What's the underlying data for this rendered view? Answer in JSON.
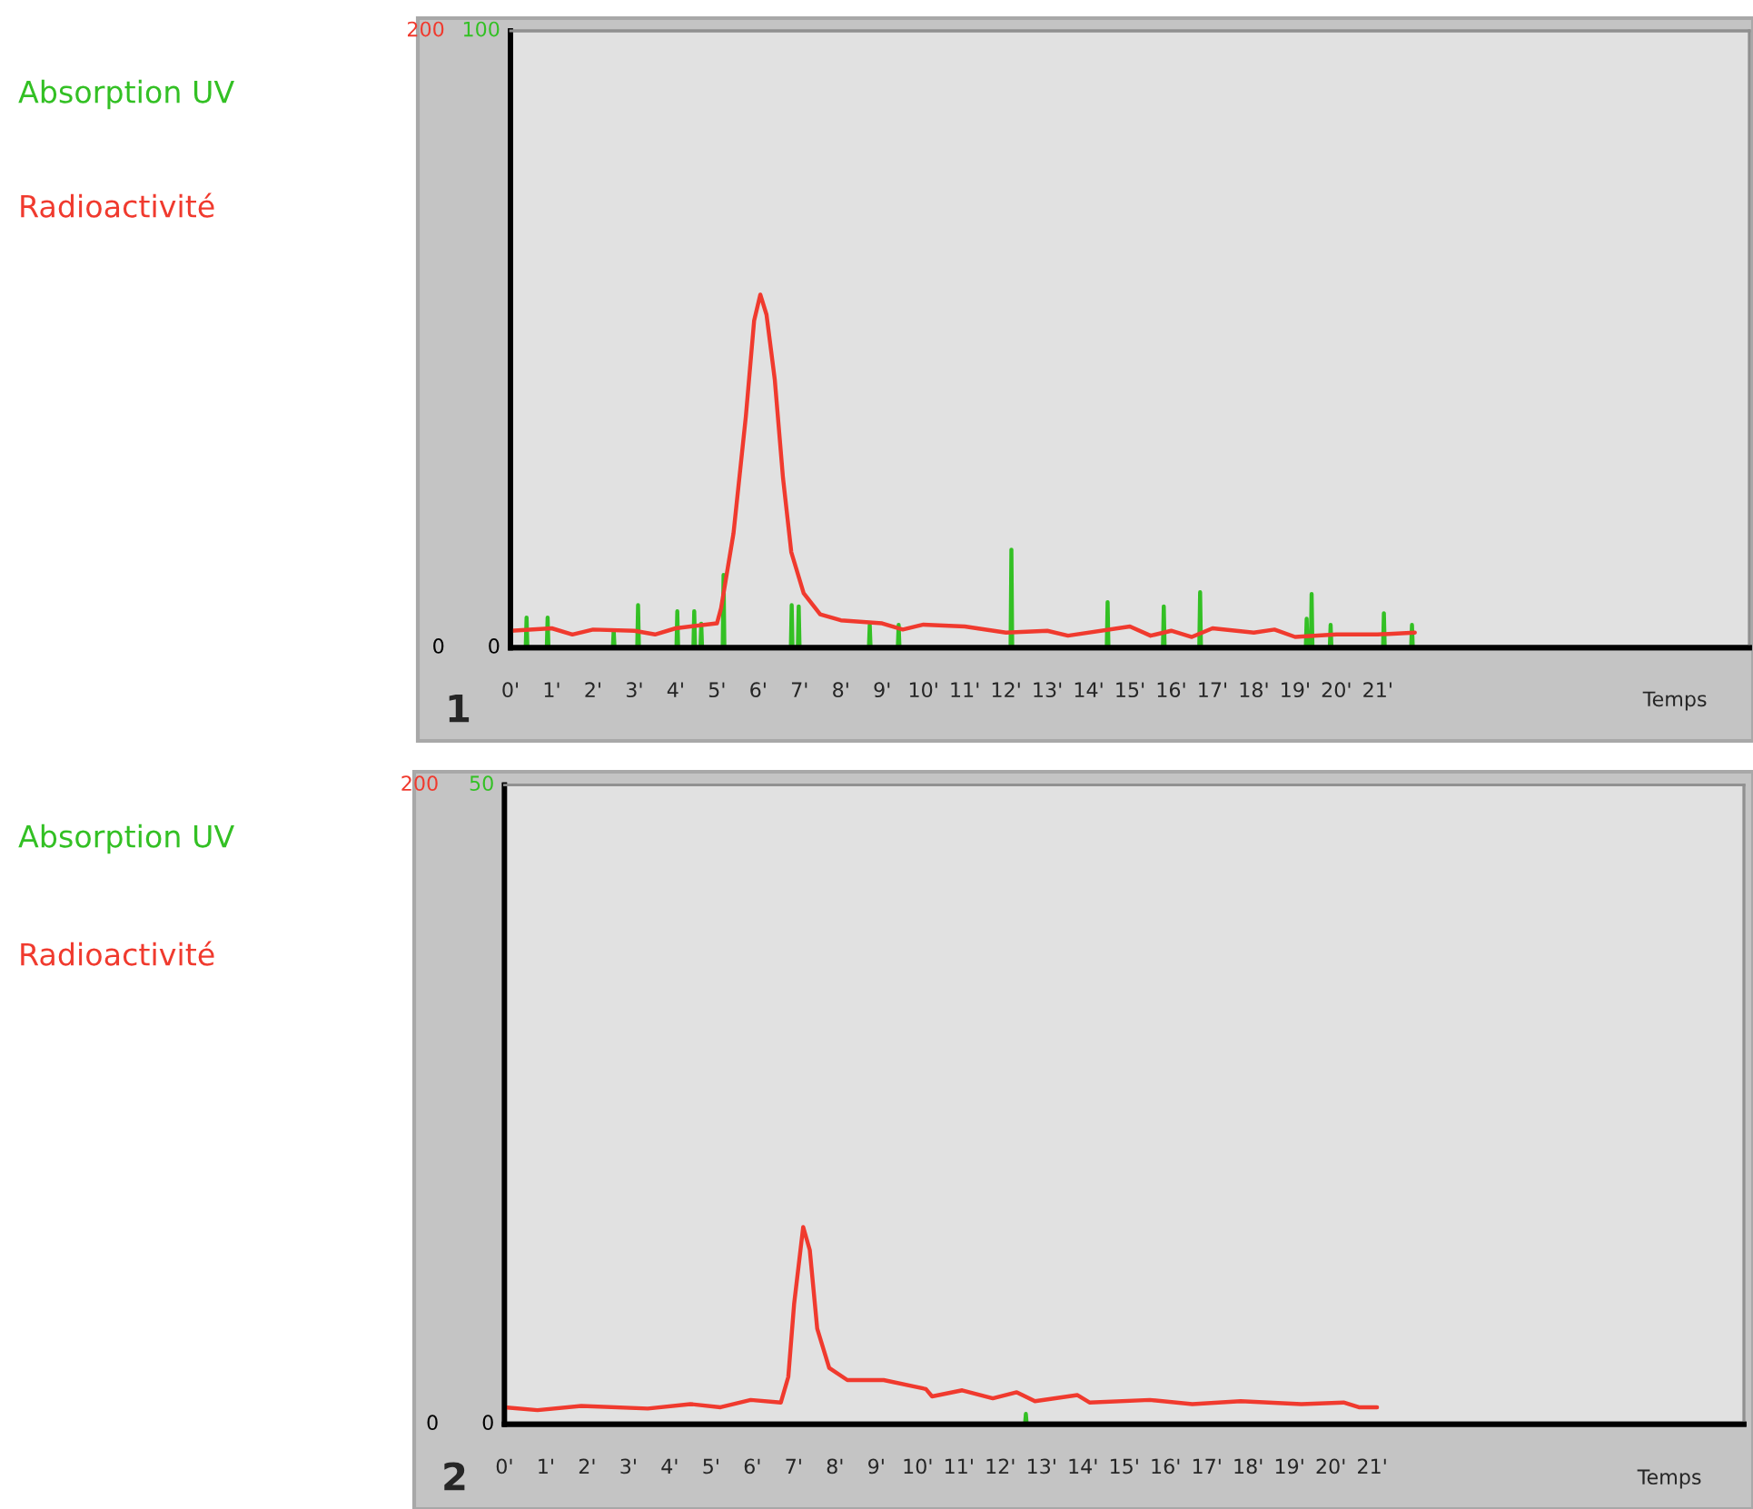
{
  "chart_data": [
    {
      "type": "line",
      "xlabel": "Temps",
      "annotations": [
        "1"
      ],
      "legend": "left",
      "xlim": [
        0,
        30
      ],
      "xticks": [
        {
          "value": 0,
          "label": "0'"
        },
        {
          "value": 1,
          "label": "1'"
        },
        {
          "value": 2,
          "label": "2'"
        },
        {
          "value": 3,
          "label": "3'"
        },
        {
          "value": 4,
          "label": "4'"
        },
        {
          "value": 5,
          "label": "5'"
        },
        {
          "value": 6,
          "label": "6'"
        },
        {
          "value": 7,
          "label": "7'"
        },
        {
          "value": 8,
          "label": "8'"
        },
        {
          "value": 9,
          "label": "9'"
        },
        {
          "value": 10,
          "label": "10'"
        },
        {
          "value": 11,
          "label": "11'"
        },
        {
          "value": 12,
          "label": "12'"
        },
        {
          "value": 13,
          "label": "13'"
        },
        {
          "value": 14,
          "label": "14'"
        },
        {
          "value": 15,
          "label": "15'"
        },
        {
          "value": 16,
          "label": "16'"
        },
        {
          "value": 17,
          "label": "17'"
        },
        {
          "value": 18,
          "label": "18'"
        },
        {
          "value": 19,
          "label": "19'"
        },
        {
          "value": 20,
          "label": "20'"
        },
        {
          "value": 21,
          "label": "21'"
        }
      ],
      "ylim": [
        0,
        100
      ],
      "yticks": [
        0,
        100
      ],
      "y2lim": [
        0,
        200
      ],
      "y2ticks": [
        0,
        200
      ],
      "series": [
        {
          "name": "Absorption UV",
          "color": "#33c024",
          "x": [
            0,
            0.37,
            0.39,
            0.41,
            0.88,
            0.9,
            0.92,
            2.48,
            2.5,
            2.52,
            3.07,
            3.09,
            3.11,
            4.02,
            4.04,
            4.06,
            4.43,
            4.45,
            4.47,
            4.6,
            4.62,
            4.64,
            5.14,
            5.16,
            5.18,
            6.79,
            6.81,
            6.83,
            6.96,
            6.98,
            7.0,
            8.68,
            8.7,
            8.72,
            9.38,
            9.4,
            9.42,
            12.11,
            12.13,
            12.15,
            14.44,
            14.46,
            14.48,
            15.8,
            15.82,
            15.84,
            16.68,
            16.7,
            16.72,
            19.26,
            19.28,
            19.3,
            19.38,
            19.4,
            19.42,
            19.84,
            19.86,
            19.88,
            21.13,
            21.15,
            21.17,
            21.81,
            21.83,
            21.85
          ],
          "values": [
            0,
            0,
            4.9,
            0,
            0,
            4.9,
            0,
            0,
            2.8,
            0,
            0,
            6.9,
            0,
            0,
            5.9,
            0,
            0,
            5.9,
            0,
            0,
            3.9,
            0,
            0,
            11.8,
            0,
            0,
            6.9,
            0,
            0,
            6.7,
            0,
            0,
            3.7,
            0,
            0,
            3.7,
            0,
            0,
            15.9,
            0,
            0,
            7.4,
            0,
            0,
            6.7,
            0,
            0,
            9.0,
            0,
            0,
            4.7,
            0,
            0,
            8.7,
            0,
            0,
            3.7,
            0,
            0,
            5.6,
            0,
            0,
            3.7,
            0
          ]
        },
        {
          "name": "Radioactivité",
          "color": "#f03a2e",
          "axis": "y2",
          "x": [
            0,
            1,
            1.5,
            2,
            3,
            3.5,
            4,
            5,
            5.1,
            5.4,
            5.7,
            5.9,
            6.05,
            6.2,
            6.4,
            6.6,
            6.8,
            7.1,
            7.5,
            8,
            9,
            9.5,
            10,
            11,
            12,
            13,
            13.5,
            15,
            15.5,
            16,
            16.5,
            17,
            18,
            18.5,
            19,
            20,
            21,
            21.9
          ],
          "values": [
            5.5,
            6.3,
            4.3,
            5.9,
            5.5,
            4.3,
            6.3,
            7.9,
            12.8,
            37,
            75,
            106,
            114.5,
            108,
            87,
            55,
            31,
            17.7,
            10.8,
            8.9,
            7.9,
            5.9,
            7.5,
            6.9,
            4.9,
            5.5,
            3.9,
            6.9,
            3.9,
            5.5,
            3.5,
            6.3,
            4.9,
            5.9,
            3.5,
            4.3,
            4.3,
            4.9
          ]
        }
      ]
    },
    {
      "type": "line",
      "xlabel": "Temps",
      "annotations": [
        "2"
      ],
      "legend": "left",
      "xlim": [
        0,
        30
      ],
      "xticks": [
        {
          "value": 0,
          "label": "0'"
        },
        {
          "value": 1,
          "label": "1'"
        },
        {
          "value": 2,
          "label": "2'"
        },
        {
          "value": 3,
          "label": "3'"
        },
        {
          "value": 4,
          "label": "4'"
        },
        {
          "value": 5,
          "label": "5'"
        },
        {
          "value": 6,
          "label": "6'"
        },
        {
          "value": 7,
          "label": "7'"
        },
        {
          "value": 8,
          "label": "8'"
        },
        {
          "value": 9,
          "label": "9'"
        },
        {
          "value": 10,
          "label": "10'"
        },
        {
          "value": 11,
          "label": "11'"
        },
        {
          "value": 12,
          "label": "12'"
        },
        {
          "value": 13,
          "label": "13'"
        },
        {
          "value": 14,
          "label": "14'"
        },
        {
          "value": 15,
          "label": "15'"
        },
        {
          "value": 16,
          "label": "16'"
        },
        {
          "value": 17,
          "label": "17'"
        },
        {
          "value": 18,
          "label": "18'"
        },
        {
          "value": 19,
          "label": "19'"
        },
        {
          "value": 20,
          "label": "20'"
        },
        {
          "value": 21,
          "label": "21'"
        }
      ],
      "ylim": [
        0,
        50
      ],
      "yticks": [
        0,
        50
      ],
      "y2lim": [
        0,
        200
      ],
      "y2ticks": [
        0,
        200
      ],
      "series": [
        {
          "name": "Absorption UV",
          "color": "#33c024",
          "x": [
            12.6,
            12.62,
            12.64
          ],
          "values": [
            0,
            0.8,
            0
          ]
        },
        {
          "name": "Radioactivité",
          "color": "#f03a2e",
          "axis": "y2",
          "x": [
            0,
            0.8,
            1.86,
            3.47,
            4.5,
            5.23,
            5.96,
            6.69,
            6.87,
            7.01,
            7.23,
            7.39,
            7.57,
            7.86,
            8.3,
            9.18,
            10.2,
            10.35,
            11.08,
            11.82,
            12.4,
            12.84,
            13.87,
            14.16,
            15.62,
            16.65,
            17.82,
            19.29,
            20.31,
            20.68,
            21.12
          ],
          "values": [
            5.3,
            4.4,
            5.7,
            4.9,
            6.3,
            5.3,
            7.6,
            6.8,
            14.8,
            37.5,
            61.7,
            54.5,
            29.9,
            17.6,
            13.8,
            13.8,
            11.0,
            8.7,
            10.6,
            8.1,
            10.0,
            7.2,
            9.1,
            6.8,
            7.6,
            6.3,
            7.2,
            6.3,
            6.8,
            5.3,
            5.3
          ]
        }
      ]
    }
  ]
}
